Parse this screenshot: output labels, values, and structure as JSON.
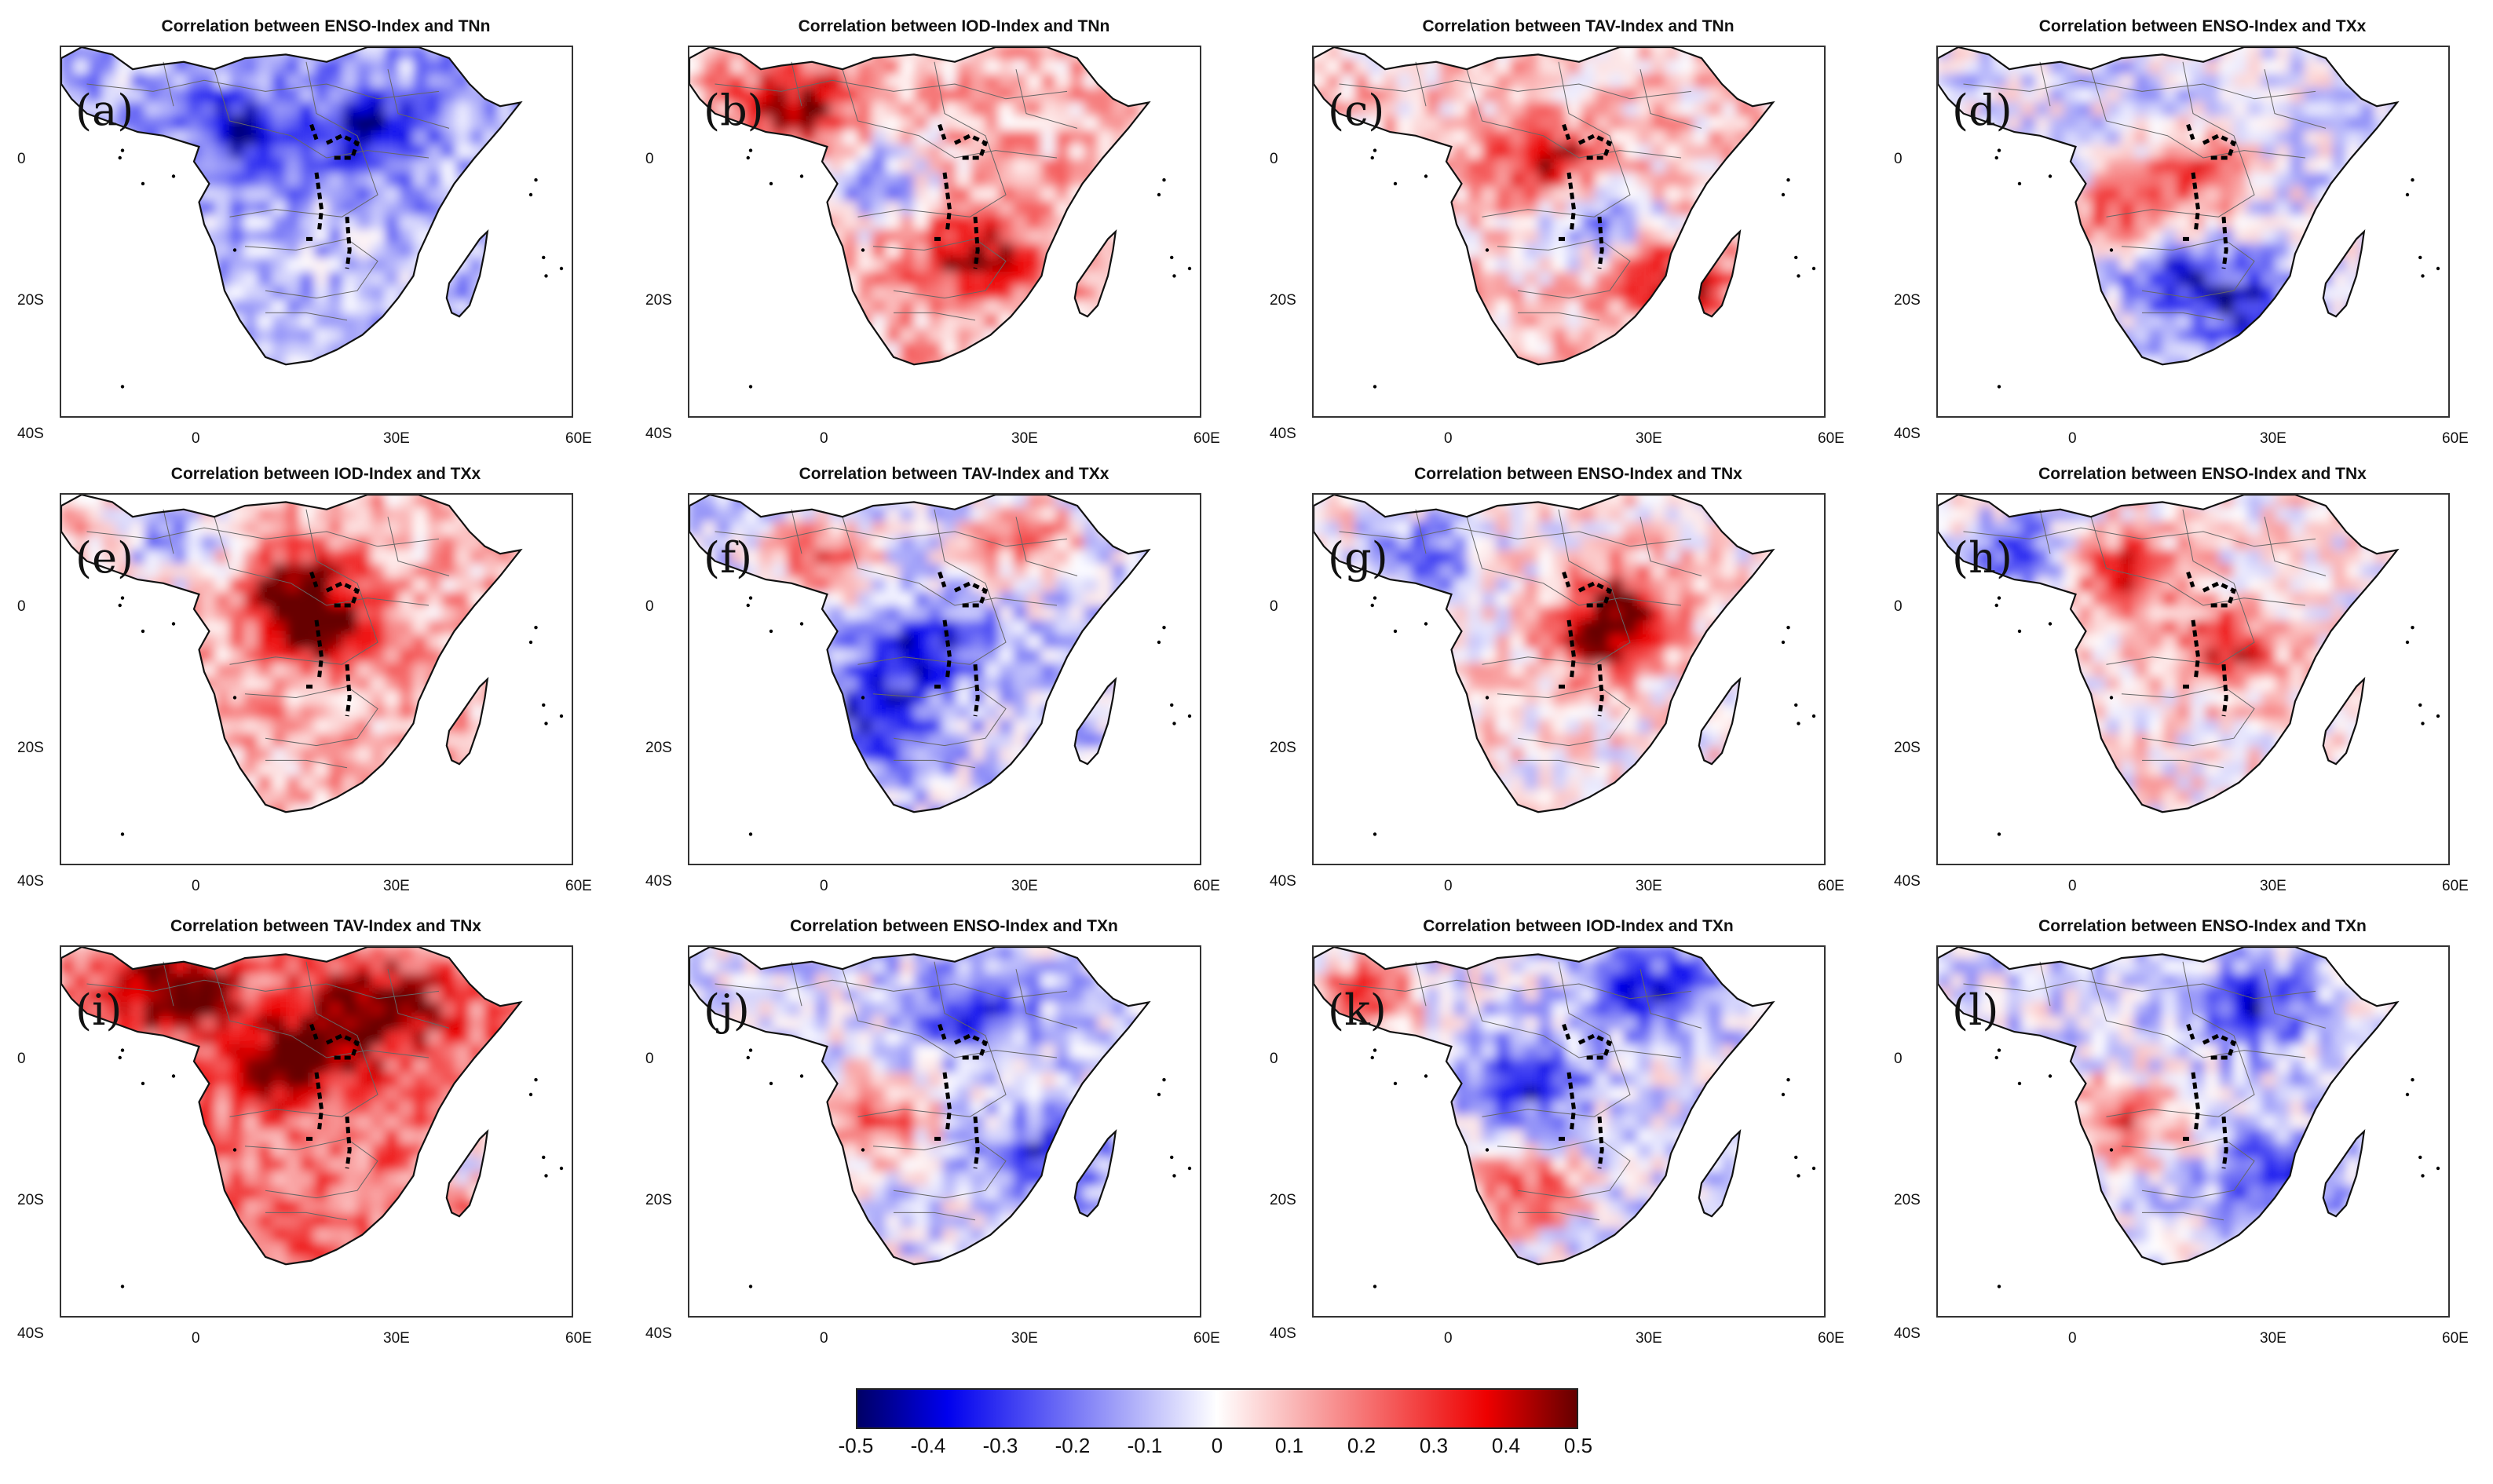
{
  "panels": [
    {
      "label": "(a)",
      "title": "Correlation between ENSO-Index and TNn",
      "seed": 11,
      "bias": -0.12,
      "hot": [],
      "cold": [
        [
          0.35,
          0.22
        ],
        [
          0.6,
          0.2
        ]
      ]
    },
    {
      "label": "(b)",
      "title": "Correlation between IOD-Index and TNn",
      "seed": 23,
      "bias": 0.12,
      "hot": [
        [
          0.2,
          0.15
        ],
        [
          0.55,
          0.55
        ]
      ],
      "cold": [
        [
          0.35,
          0.35
        ]
      ]
    },
    {
      "label": "(c)",
      "title": "Correlation between TAV-Index and TNn",
      "seed": 37,
      "bias": 0.08,
      "hot": [
        [
          0.45,
          0.3
        ],
        [
          0.7,
          0.62
        ]
      ],
      "cold": [
        [
          0.55,
          0.45
        ]
      ]
    },
    {
      "label": "(d)",
      "title": "Correlation between ENSO-Index and TXx",
      "seed": 41,
      "bias": -0.05,
      "hot": [
        [
          0.5,
          0.32
        ],
        [
          0.35,
          0.45
        ]
      ],
      "cold": [
        [
          0.45,
          0.6
        ],
        [
          0.6,
          0.7
        ]
      ]
    },
    {
      "label": "(e)",
      "title": "Correlation between IOD-Index and TXx",
      "seed": 53,
      "bias": 0.12,
      "hot": [
        [
          0.5,
          0.35
        ],
        [
          0.45,
          0.25
        ]
      ],
      "cold": [
        [
          0.2,
          0.12
        ]
      ]
    },
    {
      "label": "(f)",
      "title": "Correlation between TAV-Index and TXx",
      "seed": 67,
      "bias": -0.08,
      "hot": [
        [
          0.25,
          0.15
        ],
        [
          0.65,
          0.1
        ]
      ],
      "cold": [
        [
          0.45,
          0.4
        ],
        [
          0.35,
          0.6
        ]
      ]
    },
    {
      "label": "(g)",
      "title": "Correlation between ENSO-Index and TNx",
      "seed": 71,
      "bias": 0.03,
      "hot": [
        [
          0.55,
          0.38
        ],
        [
          0.6,
          0.28
        ]
      ],
      "cold": [
        [
          0.2,
          0.15
        ]
      ]
    },
    {
      "label": "(h)",
      "title": "Correlation between ENSO-Index and TNx",
      "seed": 83,
      "bias": 0.03,
      "hot": [
        [
          0.55,
          0.4
        ],
        [
          0.35,
          0.2
        ]
      ],
      "cold": [
        [
          0.15,
          0.15
        ]
      ]
    },
    {
      "label": "(i)",
      "title": "Correlation between TAV-Index and TNx",
      "seed": 97,
      "bias": 0.22,
      "hot": [
        [
          0.2,
          0.1
        ],
        [
          0.45,
          0.28
        ],
        [
          0.6,
          0.15
        ]
      ],
      "cold": [
        [
          0.85,
          0.55
        ]
      ]
    },
    {
      "label": "(j)",
      "title": "Correlation between ENSO-Index and TXn",
      "seed": 101,
      "bias": -0.05,
      "hot": [
        [
          0.35,
          0.45
        ]
      ],
      "cold": [
        [
          0.55,
          0.15
        ],
        [
          0.7,
          0.55
        ]
      ]
    },
    {
      "label": "(k)",
      "title": "Correlation between IOD-Index and TXn",
      "seed": 113,
      "bias": -0.05,
      "hot": [
        [
          0.08,
          0.12
        ],
        [
          0.4,
          0.65
        ]
      ],
      "cold": [
        [
          0.65,
          0.1
        ],
        [
          0.4,
          0.35
        ]
      ]
    },
    {
      "label": "(l)",
      "title": "Correlation between ENSO-Index and TXn",
      "seed": 127,
      "bias": -0.05,
      "hot": [
        [
          0.35,
          0.45
        ]
      ],
      "cold": [
        [
          0.6,
          0.15
        ],
        [
          0.65,
          0.6
        ]
      ]
    }
  ],
  "y_ticks": [
    "0",
    "20S",
    "40S"
  ],
  "x_ticks": [
    "0",
    "30E",
    "60E"
  ],
  "colorbar": {
    "ticks": [
      "-0.5",
      "-0.4",
      "-0.3",
      "-0.2",
      "-0.1",
      "0",
      "0.1",
      "0.2",
      "0.3",
      "0.4",
      "0.5"
    ],
    "min": -0.5,
    "max": 0.5,
    "colors": {
      "neg_max": "#000066",
      "neg": "#0000ee",
      "zero": "#ffffff",
      "pos": "#ee0000",
      "pos_max": "#660000"
    }
  }
}
